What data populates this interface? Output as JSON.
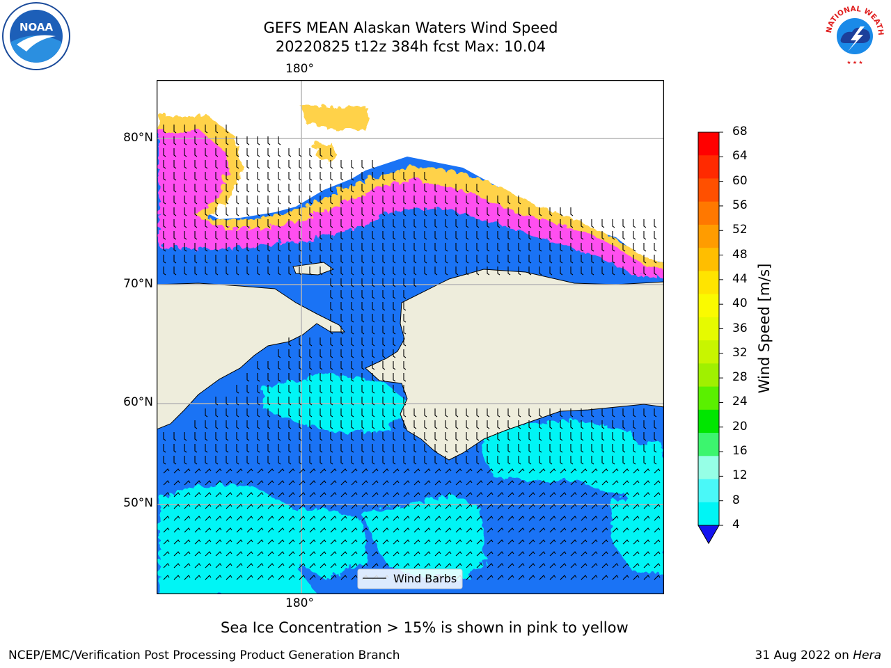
{
  "title": {
    "line1": "GEFS MEAN Alaskan Waters Wind Speed",
    "line2": "20220825 t12z 384h fcst   Max: 10.04"
  },
  "map": {
    "lon_label_top": "180°",
    "lon_label_bottom": "180°",
    "lat_labels": [
      "80°N",
      "70°N",
      "60°N",
      "50°N"
    ],
    "legend_label": "Wind Barbs",
    "colors": {
      "land": "#eeeddc",
      "ocean_4_8": "#1a73f5",
      "ocean_8_12": "#00f5f5",
      "ocean_12_16": "#49fafa",
      "ice_low": "#ff4ff0",
      "ice_mid": "#ff9eb5",
      "ice_high": "#ffd24a",
      "grid": "#b5b5b5"
    }
  },
  "colorbar": {
    "label": "Wind Speed [m/s]",
    "ticks": [
      "68",
      "64",
      "60",
      "56",
      "52",
      "48",
      "44",
      "40",
      "36",
      "32",
      "28",
      "24",
      "20",
      "16",
      "12",
      "8",
      "4"
    ],
    "colors": [
      "#ff0000",
      "#ff2a00",
      "#ff5000",
      "#ff7800",
      "#ff9c00",
      "#ffbe00",
      "#ffe400",
      "#fafa00",
      "#e6fa00",
      "#c8f500",
      "#a0f000",
      "#5af000",
      "#00e600",
      "#3cf56e",
      "#96ffe6",
      "#4af8f8",
      "#00f5f5",
      "#1a6ef5"
    ],
    "under_color": "#1414f0"
  },
  "note": "Sea Ice Concentration > 15% is shown in pink to yellow",
  "footer": {
    "left": "NCEP/EMC/Verification Post Processing Product Generation Branch",
    "date": "31 Aug 2022 on ",
    "machine": "Hera"
  },
  "logos": {
    "noaa_text": "NOAA",
    "nws_text": "NATIONAL WEATHER SERVICE"
  }
}
